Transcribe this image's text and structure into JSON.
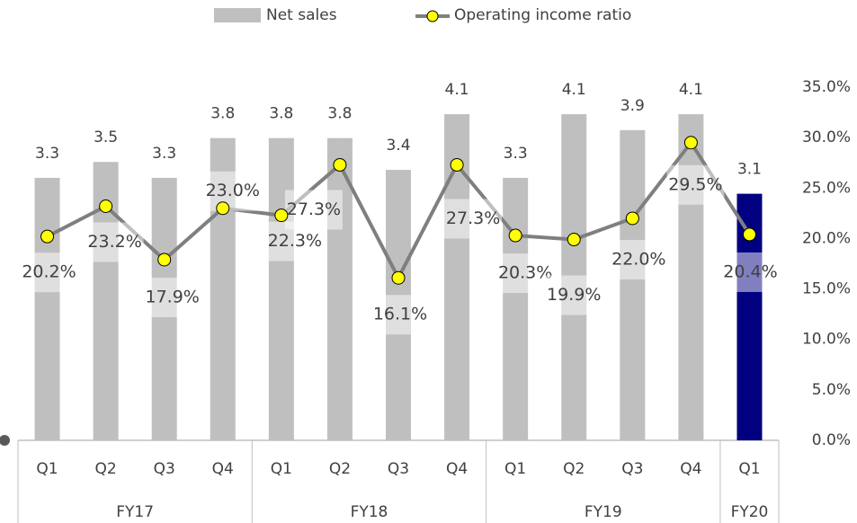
{
  "chart_data": {
    "type": "bar-line",
    "categories": [
      "Q1",
      "Q2",
      "Q3",
      "Q4",
      "Q1",
      "Q2",
      "Q3",
      "Q4",
      "Q1",
      "Q2",
      "Q3",
      "Q4",
      "Q1"
    ],
    "groups": [
      {
        "name": "FY17",
        "count": 4
      },
      {
        "name": "FY18",
        "count": 4
      },
      {
        "name": "FY19",
        "count": 4
      },
      {
        "name": "FY20",
        "count": 1
      }
    ],
    "series": [
      {
        "name": "Net sales",
        "type": "bar",
        "color": "#bfbfbf",
        "colors": [
          "#bfbfbf",
          "#bfbfbf",
          "#bfbfbf",
          "#bfbfbf",
          "#bfbfbf",
          "#bfbfbf",
          "#bfbfbf",
          "#bfbfbf",
          "#bfbfbf",
          "#bfbfbf",
          "#bfbfbf",
          "#bfbfbf",
          "#000080"
        ],
        "values": [
          3.3,
          3.5,
          3.3,
          3.8,
          3.8,
          3.8,
          3.4,
          4.1,
          3.3,
          4.1,
          3.9,
          4.1,
          3.1
        ]
      },
      {
        "name": "Operating income ratio",
        "type": "line",
        "axis": "y2",
        "color": "#7f7f7f",
        "marker_color": "#ffff00",
        "values": [
          20.2,
          23.2,
          17.9,
          23.0,
          22.3,
          27.3,
          16.1,
          27.3,
          20.3,
          19.9,
          22.0,
          29.5,
          20.4
        ],
        "value_labels": [
          "20.2%",
          "23.2%",
          "17.9%",
          "23.0%",
          "22.3%",
          "27.3%",
          "16.1%",
          "27.3%",
          "20.3%",
          "19.9%",
          "22.0%",
          "29.5%",
          "20.4%"
        ]
      }
    ],
    "ylim": [
      0,
      4.44
    ],
    "y2lim": [
      0,
      35
    ],
    "y2ticks": [
      {
        "value": 0,
        "label": "0.0%"
      },
      {
        "value": 5,
        "label": "5.0%"
      },
      {
        "value": 10,
        "label": "10.0%"
      },
      {
        "value": 15,
        "label": "15.0%"
      },
      {
        "value": 20,
        "label": "20.0%"
      },
      {
        "value": 25,
        "label": "25.0%"
      },
      {
        "value": 30,
        "label": "30.0%"
      },
      {
        "value": 35,
        "label": "35.0%"
      }
    ],
    "legend": "top"
  }
}
